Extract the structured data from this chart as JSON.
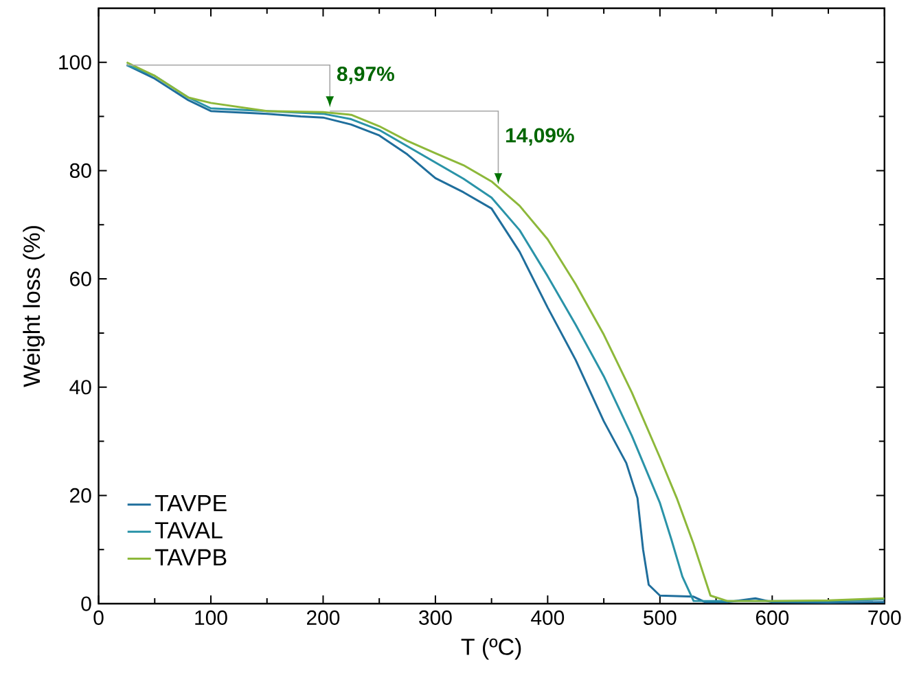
{
  "chart_data": {
    "type": "line",
    "xlabel": "T (ºC)",
    "ylabel": "Weight loss (%)",
    "xlim": [
      0,
      700
    ],
    "ylim": [
      0,
      110
    ],
    "xticks": [
      0,
      100,
      200,
      300,
      400,
      500,
      600,
      700
    ],
    "yticks": [
      0,
      20,
      40,
      60,
      80,
      100
    ],
    "legend": "bottom left",
    "grid": false,
    "marker": "none",
    "line_style": "solid",
    "annotations": [
      {
        "text": "8,97%",
        "x": 206,
        "y": 91.7
      },
      {
        "text": "14,09%",
        "x": 356,
        "y": 77.5
      }
    ],
    "series": [
      {
        "name": "TAVPE",
        "color": "#1f6e9c",
        "x": [
          25,
          50,
          80,
          100,
          150,
          180,
          200,
          225,
          250,
          275,
          300,
          325,
          350,
          375,
          400,
          425,
          450,
          470,
          480,
          485,
          490,
          500,
          530,
          540,
          560,
          585,
          600,
          650,
          700
        ],
        "values": [
          99.5,
          97,
          93,
          91,
          90.5,
          90,
          89.8,
          88.5,
          86.5,
          83,
          78.6,
          76,
          73,
          65,
          54.7,
          45,
          33.7,
          26,
          19.5,
          10,
          3.5,
          1.5,
          1.3,
          0.3,
          0.3,
          1,
          0.3,
          0.2,
          0.3
        ]
      },
      {
        "name": "TAVAL",
        "color": "#2a93a8",
        "x": [
          25,
          50,
          80,
          100,
          150,
          200,
          225,
          250,
          275,
          300,
          325,
          350,
          375,
          400,
          425,
          450,
          475,
          500,
          510,
          520,
          530,
          560,
          600,
          650,
          700
        ],
        "values": [
          99.5,
          97.5,
          93.5,
          91.5,
          91,
          90.5,
          89.5,
          87.5,
          84.5,
          81.5,
          78.5,
          75,
          69,
          60.5,
          51.5,
          42,
          31,
          18.6,
          12,
          5,
          0.5,
          0.5,
          0.5,
          0.5,
          0.8
        ]
      },
      {
        "name": "TAVPB",
        "color": "#8db83a",
        "x": [
          25,
          50,
          80,
          100,
          150,
          200,
          225,
          250,
          275,
          300,
          325,
          350,
          375,
          400,
          425,
          450,
          475,
          500,
          515,
          530,
          545,
          560,
          600,
          650,
          700
        ],
        "values": [
          100,
          97.5,
          93.5,
          92.5,
          91,
          90.8,
          90.3,
          88.2,
          85.5,
          83.2,
          81,
          78,
          73.5,
          67.3,
          59,
          49.7,
          39,
          27,
          19.5,
          11,
          1.5,
          0.5,
          0.5,
          0.6,
          1
        ]
      }
    ]
  }
}
